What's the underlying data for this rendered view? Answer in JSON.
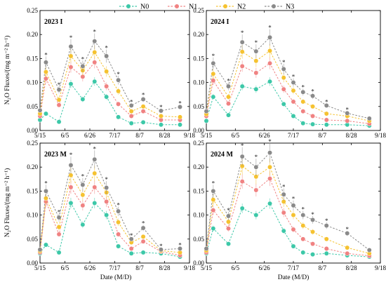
{
  "chart_data": {
    "type": "line",
    "legend": {
      "placement": "top-center",
      "entries": [
        {
          "name": "N0",
          "color": "#3cc8a8"
        },
        {
          "name": "N1",
          "color": "#f08282"
        },
        {
          "name": "N2",
          "color": "#f5c230"
        },
        {
          "name": "N3",
          "color": "#8a8a8a"
        }
      ]
    },
    "xlabel": "Date (M/D)",
    "ylabel": "N₂O Fluxes/(mg m⁻² h⁻¹)",
    "x_ticks": [
      "5/15",
      "6/5",
      "6/26",
      "7/17",
      "8/7",
      "8/28",
      "9/18"
    ],
    "x_range": [
      "5/15",
      "9/18"
    ],
    "ylim": [
      0,
      0.25
    ],
    "y_ticks": [
      "0.00",
      "0.05",
      "0.10",
      "0.15",
      "0.20",
      "0.25"
    ],
    "significance_marker": "*",
    "panels": [
      {
        "title": "2023 I",
        "x": [
          "5/15",
          "5/20",
          "5/31",
          "6/10",
          "6/20",
          "6/30",
          "7/10",
          "7/20",
          "7/31",
          "8/10",
          "8/25",
          "9/10"
        ],
        "series": [
          {
            "name": "N0",
            "values": [
              0.022,
              0.035,
              0.018,
              0.097,
              0.065,
              0.102,
              0.07,
              0.028,
              0.015,
              0.017,
              0.012,
              0.012
            ]
          },
          {
            "name": "N1",
            "values": [
              0.03,
              0.108,
              0.053,
              0.132,
              0.112,
              0.142,
              0.092,
              0.055,
              0.03,
              0.04,
              0.022,
              0.022
            ]
          },
          {
            "name": "N2",
            "values": [
              0.035,
              0.122,
              0.064,
              0.155,
              0.125,
              0.163,
              0.123,
              0.082,
              0.04,
              0.05,
              0.03,
              0.028
            ]
          },
          {
            "name": "N3",
            "values": [
              0.042,
              0.142,
              0.085,
              0.175,
              0.134,
              0.186,
              0.155,
              0.105,
              0.052,
              0.065,
              0.041,
              0.049
            ]
          }
        ],
        "stars": [
          false,
          true,
          true,
          true,
          true,
          true,
          true,
          true,
          true,
          true,
          true,
          true
        ]
      },
      {
        "title": "2024 I",
        "x": [
          "5/15",
          "5/20",
          "5/31",
          "6/10",
          "6/20",
          "6/30",
          "7/10",
          "7/17",
          "7/24",
          "7/31",
          "8/10",
          "8/25",
          "9/10"
        ],
        "series": [
          {
            "name": "N0",
            "values": [
              0.02,
              0.07,
              0.032,
              0.092,
              0.086,
              0.102,
              0.055,
              0.03,
              0.015,
              0.013,
              0.012,
              0.012,
              0.01
            ]
          },
          {
            "name": "N1",
            "values": [
              0.03,
              0.104,
              0.056,
              0.134,
              0.12,
              0.14,
              0.086,
              0.06,
              0.04,
              0.03,
              0.022,
              0.02,
              0.014
            ]
          },
          {
            "name": "N2",
            "values": [
              0.034,
              0.118,
              0.07,
              0.164,
              0.145,
              0.166,
              0.11,
              0.083,
              0.06,
              0.05,
              0.035,
              0.03,
              0.02
            ]
          },
          {
            "name": "N3",
            "values": [
              0.04,
              0.14,
              0.092,
              0.184,
              0.165,
              0.194,
              0.128,
              0.1,
              0.08,
              0.072,
              0.052,
              0.036,
              0.025
            ]
          }
        ],
        "stars": [
          false,
          true,
          true,
          true,
          true,
          true,
          true,
          true,
          true,
          true,
          true,
          true,
          false
        ]
      },
      {
        "title": "2023 M",
        "x": [
          "5/15",
          "5/20",
          "5/31",
          "6/10",
          "6/20",
          "6/30",
          "7/10",
          "7/20",
          "7/31",
          "8/10",
          "8/25",
          "9/10"
        ],
        "series": [
          {
            "name": "N0",
            "values": [
              0.02,
              0.038,
              0.022,
              0.125,
              0.08,
              0.125,
              0.1,
              0.035,
              0.02,
              0.022,
              0.02,
              0.013
            ]
          },
          {
            "name": "N1",
            "values": [
              0.022,
              0.128,
              0.06,
              0.158,
              0.12,
              0.158,
              0.128,
              0.06,
              0.03,
              0.045,
              0.024,
              0.016
            ]
          },
          {
            "name": "N2",
            "values": [
              0.025,
              0.135,
              0.075,
              0.183,
              0.142,
              0.187,
              0.147,
              0.085,
              0.043,
              0.055,
              0.026,
              0.022
            ]
          },
          {
            "name": "N3",
            "values": [
              0.028,
              0.15,
              0.095,
              0.204,
              0.163,
              0.216,
              0.157,
              0.108,
              0.05,
              0.073,
              0.028,
              0.03
            ]
          }
        ],
        "stars": [
          false,
          true,
          true,
          true,
          true,
          true,
          true,
          true,
          true,
          true,
          true,
          true
        ]
      },
      {
        "title": "2024 M",
        "x": [
          "5/15",
          "5/20",
          "5/31",
          "6/10",
          "6/20",
          "6/30",
          "7/10",
          "7/17",
          "7/24",
          "7/31",
          "8/10",
          "8/25",
          "9/10"
        ],
        "series": [
          {
            "name": "N0",
            "values": [
              0.02,
              0.072,
              0.04,
              0.114,
              0.1,
              0.124,
              0.067,
              0.035,
              0.022,
              0.018,
              0.02,
              0.016,
              0.013
            ]
          },
          {
            "name": "N1",
            "values": [
              0.022,
              0.11,
              0.072,
              0.17,
              0.152,
              0.176,
              0.105,
              0.07,
              0.05,
              0.04,
              0.03,
              0.02,
              0.015
            ]
          },
          {
            "name": "N2",
            "values": [
              0.026,
              0.132,
              0.086,
              0.202,
              0.18,
              0.2,
              0.128,
              0.1,
              0.078,
              0.065,
              0.05,
              0.032,
              0.02
            ]
          },
          {
            "name": "N3",
            "values": [
              0.03,
              0.15,
              0.098,
              0.222,
              0.2,
              0.23,
              0.143,
              0.12,
              0.1,
              0.09,
              0.078,
              0.062,
              0.027
            ]
          }
        ],
        "stars": [
          false,
          true,
          true,
          true,
          true,
          true,
          true,
          true,
          true,
          true,
          true,
          true,
          false
        ]
      }
    ]
  }
}
